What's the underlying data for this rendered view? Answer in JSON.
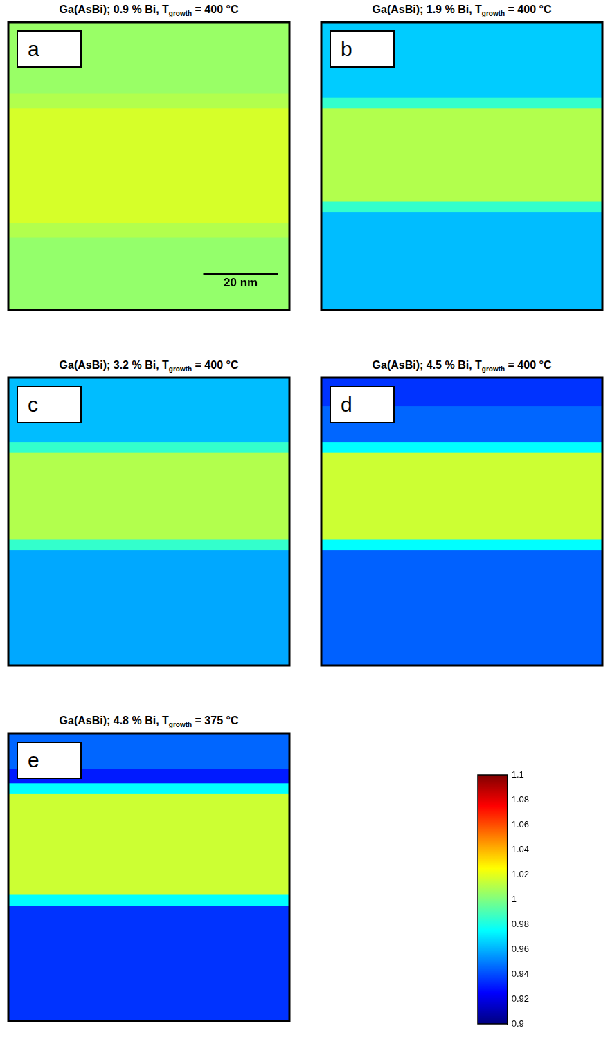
{
  "chart_data": [
    {
      "type": "heatmap",
      "label": "a",
      "title": [
        "Ga(AsBi); 0.9 % Bi, T",
        "growth",
        " = 400 °C"
      ],
      "xlim": [
        0,
        75
      ],
      "ylim": [
        0,
        80
      ],
      "tick_labels": false,
      "grid": false,
      "cells": {
        "y_edges": [
          0,
          20,
          24,
          56,
          60,
          80
        ],
        "values": [
          1.005,
          1.01,
          1.017,
          1.01,
          1.004
        ]
      },
      "scale_bar": {
        "length": 20,
        "label": "20 nm"
      }
    },
    {
      "type": "heatmap",
      "label": "b",
      "title": [
        "Ga(AsBi); 1.9 % Bi, T",
        "growth",
        " = 400 °C"
      ],
      "xlim": [
        0,
        75
      ],
      "ylim": [
        0,
        80
      ],
      "tick_labels": false,
      "grid": false,
      "cells": {
        "y_edges": [
          0,
          21,
          24,
          50,
          53,
          80
        ],
        "values": [
          0.965,
          0.985,
          1.01,
          0.985,
          0.962
        ]
      }
    },
    {
      "type": "heatmap",
      "label": "c",
      "title": [
        "Ga(AsBi); 3.2 % Bi, T",
        "growth",
        " = 400 °C"
      ],
      "xlim": [
        0,
        75
      ],
      "ylim": [
        0,
        80
      ],
      "tick_labels": false,
      "grid": false,
      "cells": {
        "y_edges": [
          0,
          18,
          21,
          45,
          48,
          80
        ],
        "values": [
          0.962,
          0.985,
          1.01,
          0.985,
          0.958
        ]
      }
    },
    {
      "type": "heatmap",
      "label": "d",
      "title": [
        "Ga(AsBi); 4.5 % Bi, T",
        "growth",
        " = 400 °C"
      ],
      "xlim": [
        0,
        75
      ],
      "ylim": [
        0,
        80
      ],
      "tick_labels": false,
      "grid": false,
      "cells": {
        "y_edges": [
          0,
          8,
          18,
          21,
          45,
          48,
          80
        ],
        "values": [
          0.935,
          0.945,
          0.975,
          1.015,
          0.975,
          0.944
        ]
      }
    },
    {
      "type": "heatmap",
      "label": "e",
      "title": [
        "Ga(AsBi); 4.8 % Bi, T",
        "growth",
        " = 375 °C"
      ],
      "xlim": [
        0,
        75
      ],
      "ylim": [
        0,
        80
      ],
      "tick_labels": false,
      "grid": false,
      "cells": {
        "y_edges": [
          0,
          10,
          14,
          17,
          45,
          48,
          80
        ],
        "values": [
          0.945,
          0.93,
          0.975,
          1.015,
          0.975,
          0.935
        ]
      }
    },
    {
      "type": "colorbar",
      "ylim": [
        0.9,
        1.1
      ],
      "yticks": [
        0.9,
        0.92,
        0.94,
        0.96,
        0.98,
        1,
        1.02,
        1.04,
        1.06,
        1.08,
        1.1
      ]
    }
  ]
}
